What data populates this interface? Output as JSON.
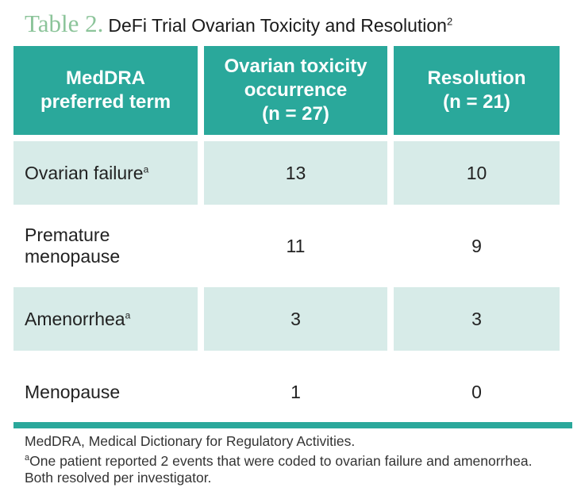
{
  "title": {
    "label": "Table 2.",
    "text": "DeFi Trial Ovarian Toxicity and Resolution",
    "ref": "2"
  },
  "table": {
    "headers": [
      {
        "line1": "MedDRA",
        "line2": "preferred term",
        "line3": ""
      },
      {
        "line1": "Ovarian toxicity",
        "line2": "occurrence",
        "line3": "(n = 27)"
      },
      {
        "line1": "Resolution",
        "line2": "(n = 21)",
        "line3": ""
      }
    ],
    "rows": [
      {
        "term": "Ovarian failure",
        "note": "a",
        "occurrence": "13",
        "resolution": "10"
      },
      {
        "term": "Premature menopause",
        "note": "",
        "occurrence": "11",
        "resolution": "9"
      },
      {
        "term": "Amenorrhea",
        "note": "a",
        "occurrence": "3",
        "resolution": "3"
      },
      {
        "term": "Menopause",
        "note": "",
        "occurrence": "1",
        "resolution": "0"
      }
    ]
  },
  "footnotes": {
    "abbrev": "MedDRA, Medical Dictionary for Regulatory Activities.",
    "note_marker": "a",
    "note_text": "One patient reported 2 events that were coded to ovarian failure and amenorrhea. Both resolved per investigator."
  },
  "colors": {
    "header_bg": "#2aa89b",
    "row_shade": "#d7ebe8",
    "title_label": "#8cc49a"
  }
}
